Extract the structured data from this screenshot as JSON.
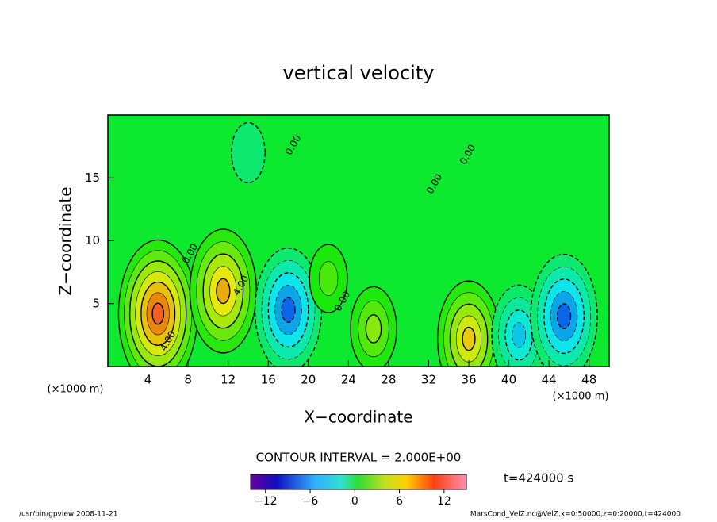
{
  "chart_data": {
    "type": "contour",
    "title": "vertical velocity",
    "xlabel": "X−coordinate",
    "ylabel": "Z−coordinate",
    "x_unit": "(×1000 m)",
    "xlim": [
      0,
      50
    ],
    "ylim": [
      0,
      20
    ],
    "xticks": [
      4,
      8,
      12,
      16,
      20,
      24,
      28,
      32,
      36,
      40,
      44,
      48
    ],
    "yticks": [
      5,
      10,
      15
    ],
    "background_value": 0,
    "extrema": [
      {
        "x": 5,
        "z": 4.2,
        "value": 13
      },
      {
        "x": 11.5,
        "z": 6,
        "value": 10
      },
      {
        "x": 18,
        "z": 4.5,
        "value": -10
      },
      {
        "x": 26.5,
        "z": 3,
        "value": 5
      },
      {
        "x": 36,
        "z": 2.2,
        "value": 9
      },
      {
        "x": 41,
        "z": 2.5,
        "value": -7
      },
      {
        "x": 45.5,
        "z": 4,
        "value": -10
      },
      {
        "x": 22,
        "z": 7,
        "value": 3
      },
      {
        "x": 14,
        "z": 17,
        "value": -2
      }
    ],
    "contour_labels": [
      "0.00",
      "0.00",
      "0.00",
      "4.00",
      "4.00",
      "0.00",
      "0.00"
    ],
    "contour_interval": "CONTOUR INTERVAL = 2.000E+00",
    "time_label": "t=424000 s",
    "clim": [
      -14,
      15
    ],
    "cticks": [
      {
        "value": -12,
        "label": "−12"
      },
      {
        "value": -6,
        "label": "−6"
      },
      0,
      6,
      12
    ],
    "footer_left": "/usr/bin/gpview  2008-11-21",
    "footer_right": "MarsCond_VelZ.nc@VelZ,x=0:50000,z=0:20000,t=424000"
  }
}
